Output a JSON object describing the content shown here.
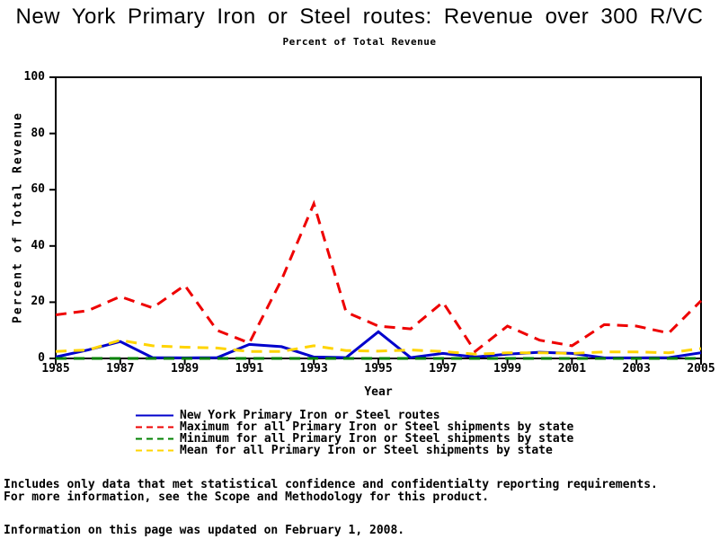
{
  "footnotes": [
    "Includes only data that met statistical confidence and confidentialty reporting requirements.",
    "For more information, see the Scope and Methodology for this product.",
    "Information on this page was updated on February 1, 2008."
  ],
  "chart_data": {
    "type": "line",
    "title": "New York Primary Iron or Steel routes: Revenue over 300 R/VC",
    "subtitle": "Percent of Total Revenue",
    "xlabel": "Year",
    "ylabel": "Percent of Total Revenue",
    "xlim": [
      1985,
      2005
    ],
    "ylim": [
      0,
      100
    ],
    "x_ticks": [
      1985,
      1987,
      1989,
      1991,
      1993,
      1995,
      1997,
      1999,
      2001,
      2003,
      2005
    ],
    "y_ticks": [
      0,
      20,
      40,
      60,
      80,
      100
    ],
    "grid": false,
    "legend_position": "bottom",
    "x": [
      1985,
      1986,
      1987,
      1988,
      1989,
      1990,
      1991,
      1992,
      1993,
      1994,
      1995,
      1996,
      1997,
      1998,
      1999,
      2000,
      2001,
      2002,
      2003,
      2004,
      2005
    ],
    "series": [
      {
        "name": "New York Primary Iron or Steel routes",
        "color": "#0000CC",
        "style": "solid",
        "values": [
          0.5,
          3,
          6,
          0.3,
          0.2,
          0.3,
          5,
          4.2,
          0.5,
          0.3,
          9.5,
          0.3,
          1.8,
          0.5,
          1.5,
          2.2,
          1.8,
          0.2,
          0.2,
          0.3,
          2
        ]
      },
      {
        "name": "Maximum for all Primary Iron or Steel shipments by state",
        "color": "#EE0000",
        "style": "dashed",
        "values": [
          15.5,
          17,
          22,
          18,
          26,
          10,
          5.5,
          28,
          55,
          16.5,
          11.5,
          10.5,
          20,
          2.5,
          11.5,
          6.5,
          4.5,
          12,
          11.5,
          9,
          20.5
        ]
      },
      {
        "name": "Minimum for all Primary Iron or Steel shipments by state",
        "color": "#008000",
        "style": "dashed",
        "values": [
          0,
          0,
          0,
          0,
          0,
          0,
          0,
          0,
          0,
          0,
          0,
          0,
          0,
          0,
          0,
          0,
          0,
          0,
          0,
          0,
          0
        ]
      },
      {
        "name": "Mean for all Primary Iron or Steel shipments by state",
        "color": "#FFD400",
        "style": "dashed",
        "values": [
          2.5,
          3,
          6.5,
          4.5,
          4,
          3.7,
          2.5,
          2.5,
          4.5,
          2.8,
          2.6,
          3,
          2.5,
          1.5,
          2,
          2,
          1.8,
          2.3,
          2.3,
          2,
          3.5
        ]
      }
    ]
  }
}
